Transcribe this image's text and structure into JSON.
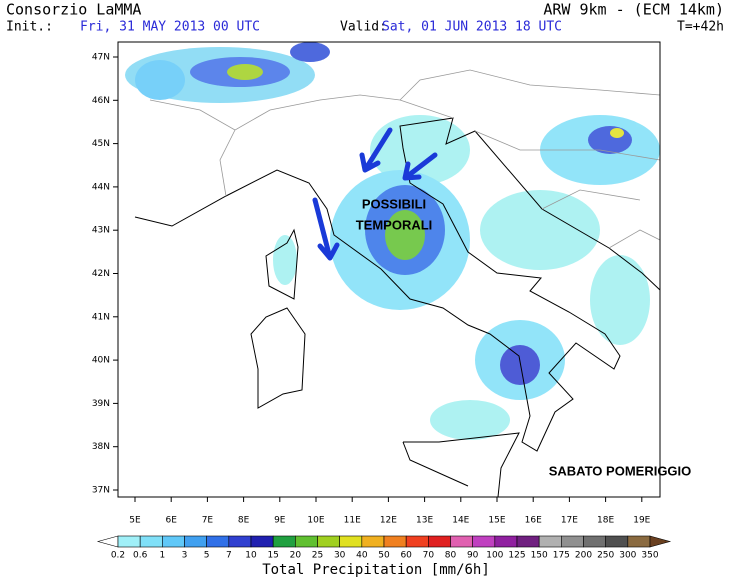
{
  "header": {
    "producer": "Consorzio LaMMA",
    "init_label": "Init.:",
    "init_time": "Fri, 31 MAY 2013  00 UTC",
    "valid_label": "Valid:",
    "valid_time": "Sat, 01 JUN 2013  18 UTC",
    "model": "ARW 9km - (ECM 14km)",
    "lead_time": "T=+42h"
  },
  "axes": {
    "lon_ticks": [
      "5E",
      "6E",
      "7E",
      "8E",
      "9E",
      "10E",
      "11E",
      "12E",
      "13E",
      "14E",
      "15E",
      "16E",
      "17E",
      "18E",
      "19E"
    ],
    "lat_ticks": [
      "47N",
      "46N",
      "45N",
      "44N",
      "43N",
      "42N",
      "41N",
      "40N",
      "39N",
      "38N",
      "37N"
    ]
  },
  "annotations": [
    "POSSIBILI",
    "TEMPORALI",
    "SABATO POMERIGGIO"
  ],
  "legend": {
    "title": "Total Precipitation [mm/6h]",
    "labels": [
      "0.2",
      "0.6",
      "1",
      "3",
      "5",
      "7",
      "10",
      "15",
      "20",
      "25",
      "30",
      "40",
      "50",
      "60",
      "70",
      "80",
      "90",
      "100",
      "125",
      "150",
      "175",
      "200",
      "250",
      "300",
      "350"
    ],
    "colors": [
      "#ffffff",
      "#a0f0f8",
      "#80e0f8",
      "#60c8f8",
      "#40a0f0",
      "#3070e8",
      "#3040d0",
      "#2020b0",
      "#20a040",
      "#60c030",
      "#a0d020",
      "#e0e020",
      "#f0b020",
      "#f08020",
      "#f04020",
      "#e02020",
      "#e060b0",
      "#c040c0",
      "#9020a0",
      "#702080",
      "#b0b0b0",
      "#909090",
      "#707070",
      "#505050",
      "#8a6a40",
      "#6a4020"
    ]
  }
}
